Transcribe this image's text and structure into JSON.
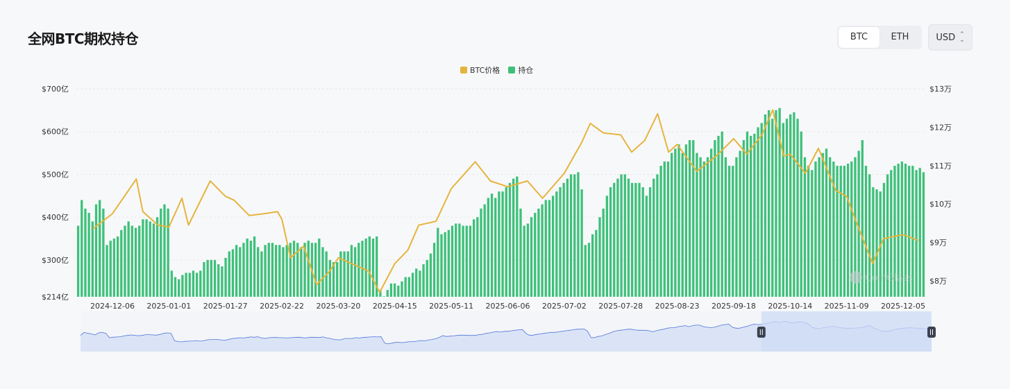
{
  "page": {
    "title": "全网BTC期权持仓"
  },
  "controls": {
    "coins": [
      "BTC",
      "ETH"
    ],
    "active_coin": "BTC",
    "currency": "USD"
  },
  "colors": {
    "price": "#e6b43c",
    "oi": "#3ec07a",
    "nav_line": "#4f74d8",
    "nav_fill": "#dbe4f6",
    "nav_sel": "#cfdbf5"
  },
  "icons": {
    "currency_dropdown": "chevron-up-down-icon",
    "slider_handle": "pause-handle-icon"
  },
  "chart_data": {
    "type": "bar+line",
    "title": "",
    "x_ticks": [
      "2024-12-06",
      "2025-01-01",
      "2025-01-27",
      "2025-02-22",
      "2025-03-20",
      "2025-04-15",
      "2025-05-11",
      "2025-06-06",
      "2025-07-02",
      "2025-07-28",
      "2025-08-23",
      "2025-09-18",
      "2025-10-14",
      "2025-11-09",
      "2025-12-05"
    ],
    "y_left_ticks": [
      "$700亿",
      "$600亿",
      "$500亿",
      "$400亿",
      "$300亿",
      "$214亿"
    ],
    "y_left_values": [
      700,
      600,
      500,
      400,
      300,
      214
    ],
    "y_right_ticks": [
      "$13万",
      "$12万",
      "$11万",
      "$10万",
      "$9万",
      "$8万"
    ],
    "y_right_values": [
      130000,
      120000,
      110000,
      100000,
      90000,
      80000
    ],
    "legend": [
      "BTC价格",
      "持仓"
    ],
    "grid": true,
    "series": [
      {
        "name": "BTC价格",
        "kind": "line",
        "axis": "right",
        "x": [
          "2024-11-27",
          "2024-12-06",
          "2024-12-17",
          "2024-12-20",
          "2024-12-27",
          "2025-01-01",
          "2025-01-07",
          "2025-01-10",
          "2025-01-20",
          "2025-01-27",
          "2025-01-31",
          "2025-02-07",
          "2025-02-14",
          "2025-02-20",
          "2025-02-22",
          "2025-02-26",
          "2025-03-04",
          "2025-03-10",
          "2025-03-16",
          "2025-03-20",
          "2025-03-28",
          "2025-04-03",
          "2025-04-08",
          "2025-04-15",
          "2025-04-21",
          "2025-04-26",
          "2025-05-04",
          "2025-05-11",
          "2025-05-22",
          "2025-05-29",
          "2025-06-06",
          "2025-06-15",
          "2025-06-22",
          "2025-07-02",
          "2025-07-10",
          "2025-07-14",
          "2025-07-20",
          "2025-07-28",
          "2025-08-02",
          "2025-08-08",
          "2025-08-14",
          "2025-08-19",
          "2025-08-23",
          "2025-09-01",
          "2025-09-10",
          "2025-09-18",
          "2025-09-24",
          "2025-10-01",
          "2025-10-06",
          "2025-10-11",
          "2025-10-14",
          "2025-10-21",
          "2025-10-27",
          "2025-11-04",
          "2025-11-09",
          "2025-11-14",
          "2025-11-21",
          "2025-11-26",
          "2025-12-05",
          "2025-12-12"
        ],
        "values": [
          93500,
          97500,
          106500,
          98000,
          94500,
          94000,
          101500,
          94500,
          106000,
          102000,
          101000,
          97000,
          97500,
          98000,
          96000,
          86000,
          89000,
          79000,
          82500,
          86000,
          84000,
          82500,
          77000,
          84500,
          88000,
          94500,
          95500,
          104000,
          111000,
          106000,
          104500,
          106000,
          101500,
          108000,
          116000,
          121000,
          118500,
          118000,
          113500,
          116500,
          123500,
          113500,
          115500,
          108500,
          112500,
          117000,
          113000,
          118000,
          124500,
          112500,
          113000,
          108000,
          114500,
          103500,
          102000,
          94500,
          84500,
          91000,
          92000,
          90500
        ]
      },
      {
        "name": "持仓",
        "kind": "bar",
        "axis": "left",
        "x_start": "2024-11-27",
        "x_end": "2025-12-13",
        "values": [
          380,
          440,
          420,
          410,
          390,
          430,
          440,
          420,
          335,
          345,
          350,
          355,
          370,
          380,
          390,
          380,
          375,
          380,
          395,
          395,
          390,
          385,
          400,
          420,
          430,
          420,
          275,
          260,
          255,
          265,
          270,
          270,
          275,
          270,
          275,
          295,
          300,
          300,
          300,
          290,
          285,
          305,
          320,
          325,
          335,
          330,
          340,
          350,
          345,
          355,
          330,
          320,
          335,
          340,
          340,
          335,
          335,
          330,
          335,
          340,
          345,
          340,
          330,
          340,
          345,
          340,
          340,
          350,
          330,
          320,
          300,
          295,
          295,
          320,
          320,
          320,
          335,
          330,
          340,
          345,
          350,
          355,
          350,
          355,
          230,
          215,
          230,
          245,
          245,
          240,
          250,
          260,
          260,
          270,
          280,
          275,
          290,
          300,
          315,
          340,
          375,
          360,
          365,
          370,
          380,
          385,
          385,
          380,
          380,
          380,
          395,
          400,
          420,
          430,
          445,
          455,
          445,
          460,
          460,
          470,
          480,
          490,
          495,
          420,
          380,
          385,
          400,
          410,
          420,
          430,
          440,
          440,
          450,
          460,
          470,
          480,
          490,
          500,
          500,
          505,
          465,
          335,
          340,
          360,
          370,
          400,
          420,
          450,
          470,
          480,
          490,
          500,
          500,
          490,
          480,
          480,
          480,
          470,
          450,
          470,
          490,
          500,
          520,
          530,
          530,
          550,
          560,
          570,
          550,
          570,
          580,
          580,
          550,
          540,
          530,
          540,
          560,
          580,
          590,
          600,
          540,
          520,
          520,
          540,
          555,
          580,
          600,
          590,
          595,
          610,
          620,
          640,
          650,
          630,
          650,
          655,
          620,
          630,
          640,
          645,
          630,
          600,
          540,
          520,
          510,
          530,
          540,
          550,
          560,
          540,
          530,
          520,
          520,
          520,
          525,
          530,
          540,
          555,
          580,
          520,
          500,
          470,
          465,
          460,
          480,
          500,
          510,
          520,
          525,
          530,
          525,
          520,
          520,
          510,
          515,
          505
        ]
      }
    ],
    "navigator": {
      "range_start_fraction": 0.8,
      "range_end_fraction": 1.0
    },
    "watermark": "CoinGlass"
  }
}
